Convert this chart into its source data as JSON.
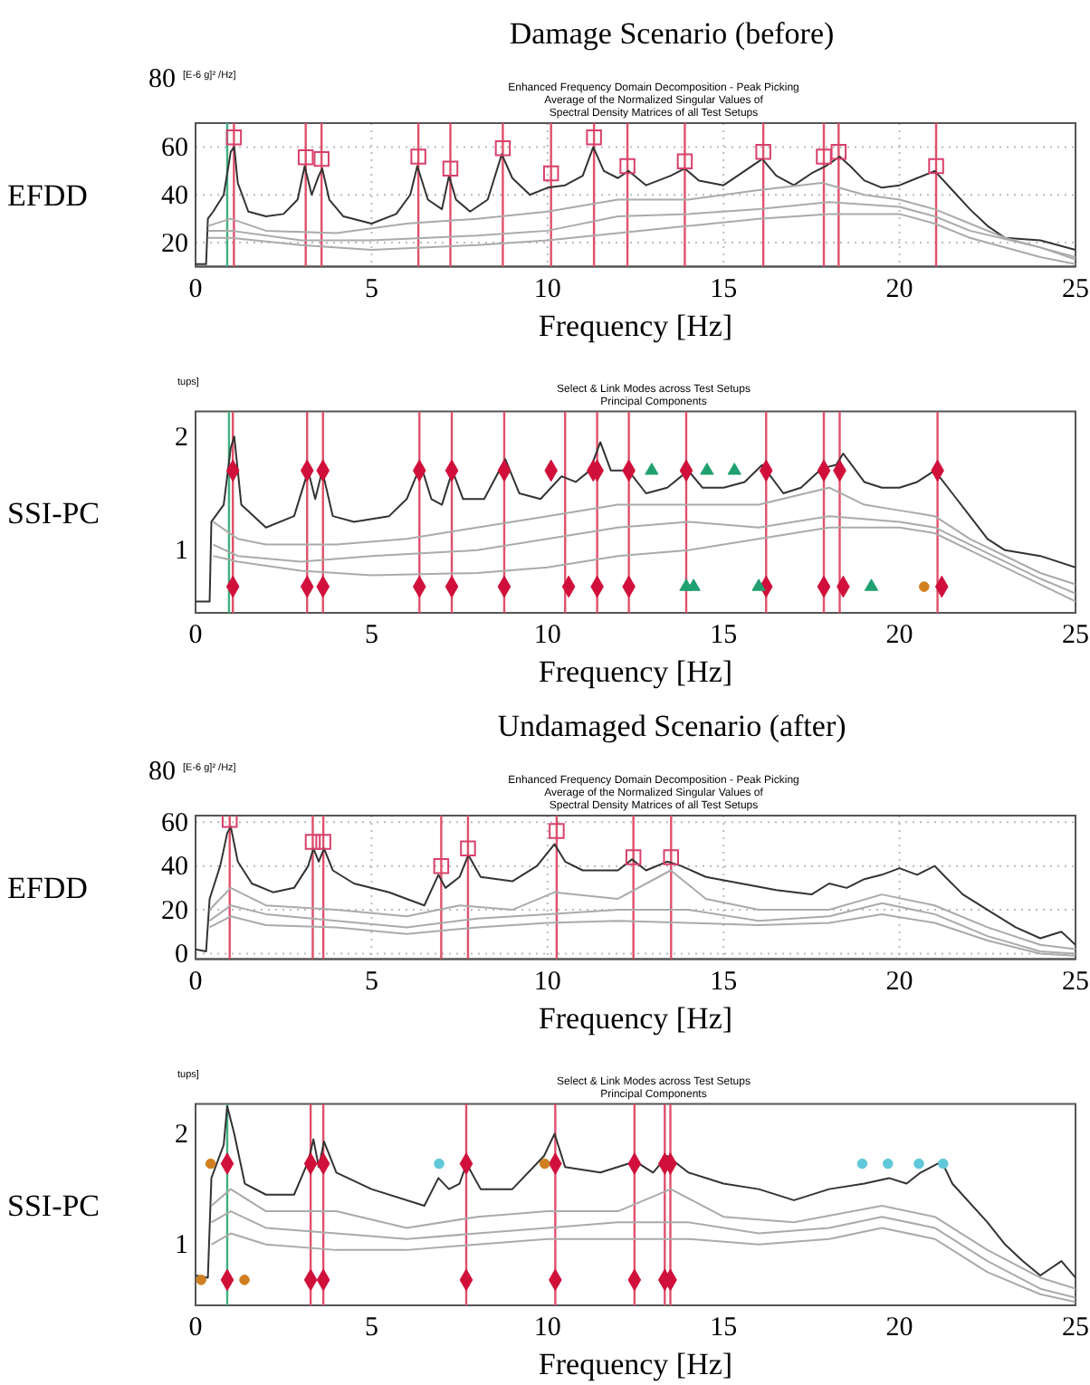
{
  "chart_data": [
    {
      "type": "line",
      "title": "Damage Scenario (before)",
      "subtitle": "Enhanced Frequency Domain Decomposition - Peak Picking\nAverage of the Normalized Singular Values of\nSpectral Density Matrices of all Test Setups",
      "ylabel": "EFDD",
      "xlabel": "Frequency [Hz]",
      "annotations": [
        "80",
        "[E-6 g]² /Hz]"
      ],
      "xlim": [
        0,
        25
      ],
      "xticks": [
        0,
        5,
        10,
        15,
        20,
        25
      ],
      "ylim": [
        10,
        70
      ],
      "yticks": [
        20,
        40,
        60
      ],
      "grid": true,
      "series": [
        {
          "color": "#333333",
          "x": [
            0,
            0.3,
            0.35,
            0.5,
            0.8,
            1.0,
            1.1,
            1.2,
            1.5,
            2,
            2.5,
            2.9,
            3.1,
            3.3,
            3.5,
            3.6,
            3.8,
            4.2,
            5,
            5.7,
            6.1,
            6.3,
            6.6,
            7,
            7.2,
            7.4,
            7.8,
            8.3,
            8.7,
            9.0,
            9.5,
            10,
            10.5,
            11,
            11.3,
            11.6,
            12,
            12.3,
            12.8,
            13.5,
            13.9,
            14.3,
            15,
            15.6,
            16.1,
            16.5,
            17,
            17.5,
            17.9,
            18.3,
            18.6,
            19,
            19.5,
            20,
            20.5,
            21,
            21.5,
            22,
            22.5,
            23,
            24,
            25
          ],
          "values": [
            11,
            11,
            30,
            33,
            40,
            58,
            60,
            45,
            33,
            31,
            32,
            38,
            52,
            40,
            48,
            51,
            38,
            31,
            28,
            32,
            40,
            52,
            38,
            34,
            48,
            38,
            33,
            38,
            57,
            47,
            40,
            43,
            44,
            48,
            60,
            50,
            47,
            50,
            44,
            48,
            51,
            46,
            44,
            50,
            55,
            48,
            44,
            49,
            52,
            56,
            52,
            46,
            43,
            44,
            47,
            50,
            42,
            34,
            27,
            22,
            21,
            17
          ]
        },
        {
          "color": "#aaaaaa",
          "x": [
            0.35,
            1,
            2,
            4,
            6,
            8,
            10,
            12,
            14,
            16,
            17.8,
            19,
            20,
            21,
            22,
            23,
            24,
            25
          ],
          "values": [
            27,
            30,
            25,
            24,
            28,
            30,
            33,
            38,
            38,
            42,
            45,
            40,
            38,
            34,
            28,
            22,
            18,
            14
          ]
        },
        {
          "color": "#aaaaaa",
          "x": [
            0.35,
            1,
            3,
            5,
            8,
            10,
            12,
            14,
            16,
            18,
            20,
            21,
            22,
            24,
            25
          ],
          "values": [
            25,
            25,
            21,
            21,
            23,
            25,
            31,
            32,
            34,
            37,
            35,
            31,
            25,
            18,
            13
          ]
        },
        {
          "color": "#aaaaaa",
          "x": [
            0.35,
            1,
            3,
            5,
            8,
            10,
            12,
            14,
            16,
            18,
            20,
            21,
            22,
            24,
            25
          ],
          "values": [
            22,
            22,
            19,
            17,
            19,
            21,
            24,
            27,
            30,
            32,
            32,
            28,
            22,
            14,
            11
          ]
        },
        {
          "type": "scatter",
          "marker": "square",
          "color": "#d8406a",
          "x": [
            1.09,
            3.13,
            3.58,
            6.33,
            7.24,
            8.73,
            10.1,
            11.32,
            12.27,
            13.9,
            16.13,
            17.85,
            18.27,
            21.04
          ],
          "values": [
            64,
            55.7,
            55,
            56,
            51,
            59.5,
            49,
            64,
            52,
            54,
            58,
            56,
            58,
            52
          ]
        }
      ],
      "ref_lines": [
        {
          "axis": "x",
          "value": 0.9,
          "color": "#40b080"
        },
        {
          "axis": "x",
          "value": 1.09
        },
        {
          "axis": "x",
          "value": 3.13
        },
        {
          "axis": "x",
          "value": 3.58
        },
        {
          "axis": "x",
          "value": 6.33
        },
        {
          "axis": "x",
          "value": 7.24
        },
        {
          "axis": "x",
          "value": 8.73
        },
        {
          "axis": "x",
          "value": 10.1
        },
        {
          "axis": "x",
          "value": 11.32
        },
        {
          "axis": "x",
          "value": 12.27
        },
        {
          "axis": "x",
          "value": 13.9
        },
        {
          "axis": "x",
          "value": 16.13
        },
        {
          "axis": "x",
          "value": 17.85
        },
        {
          "axis": "x",
          "value": 18.27
        },
        {
          "axis": "x",
          "value": 21.04
        }
      ]
    },
    {
      "type": "line",
      "subtitle": "Select & Link Modes across Test Setups\nPrincipal Components",
      "ylabel": "SSI-PC",
      "xlabel": "Frequency [Hz]",
      "annotations": [
        "tups]"
      ],
      "xlim": [
        0,
        25
      ],
      "xticks": [
        0,
        5,
        10,
        15,
        20,
        25
      ],
      "ylim": [
        0.45,
        2.22
      ],
      "yticks": [
        1,
        2
      ],
      "series": [
        {
          "color": "#333333",
          "x": [
            0,
            0.4,
            0.45,
            0.8,
            1.0,
            1.1,
            1.3,
            2,
            2.8,
            3.2,
            3.4,
            3.6,
            3.9,
            4.5,
            5.5,
            6.0,
            6.4,
            6.7,
            7.0,
            7.3,
            7.6,
            8.2,
            8.8,
            9.2,
            9.8,
            10.4,
            10.8,
            11.2,
            11.5,
            11.8,
            12.3,
            12.8,
            13.4,
            14,
            14.4,
            15,
            15.6,
            16.1,
            16.7,
            17.2,
            17.8,
            18.2,
            18.4,
            19,
            19.5,
            20,
            20.5,
            21,
            21.5,
            22,
            22.5,
            23,
            24,
            25
          ],
          "values": [
            0.55,
            0.55,
            1.25,
            1.4,
            1.9,
            2.0,
            1.4,
            1.2,
            1.3,
            1.7,
            1.45,
            1.7,
            1.3,
            1.25,
            1.3,
            1.45,
            1.75,
            1.45,
            1.4,
            1.7,
            1.45,
            1.45,
            1.8,
            1.5,
            1.45,
            1.65,
            1.6,
            1.7,
            1.95,
            1.7,
            1.7,
            1.5,
            1.55,
            1.7,
            1.55,
            1.55,
            1.6,
            1.75,
            1.5,
            1.55,
            1.72,
            1.75,
            1.85,
            1.6,
            1.55,
            1.55,
            1.6,
            1.7,
            1.5,
            1.3,
            1.1,
            1.0,
            0.95,
            0.85
          ]
        },
        {
          "color": "#aaaaaa",
          "x": [
            0.5,
            1.2,
            2,
            4,
            6,
            8,
            10,
            12,
            14,
            16,
            18,
            19,
            20,
            21,
            22,
            24,
            25
          ],
          "values": [
            1.25,
            1.1,
            1.05,
            1.05,
            1.1,
            1.2,
            1.3,
            1.4,
            1.4,
            1.4,
            1.55,
            1.4,
            1.35,
            1.3,
            1.1,
            0.8,
            0.7
          ]
        },
        {
          "color": "#aaaaaa",
          "x": [
            0.5,
            1.2,
            3,
            5,
            8,
            10,
            12,
            14,
            16,
            18,
            20,
            21,
            22,
            24,
            25
          ],
          "values": [
            1.05,
            0.95,
            0.9,
            0.95,
            1.0,
            1.1,
            1.2,
            1.25,
            1.2,
            1.3,
            1.25,
            1.2,
            1.05,
            0.75,
            0.62
          ]
        },
        {
          "color": "#aaaaaa",
          "x": [
            0.5,
            1.2,
            3,
            5,
            8,
            10,
            12,
            14,
            16,
            18,
            20,
            21,
            22,
            24,
            25
          ],
          "values": [
            0.95,
            0.9,
            0.82,
            0.78,
            0.8,
            0.85,
            0.95,
            1.0,
            1.1,
            1.2,
            1.2,
            1.15,
            1.0,
            0.7,
            0.55
          ]
        },
        {
          "type": "scatter",
          "marker": "diamond",
          "color": "#d0103a",
          "x": [
            1.06,
            3.17,
            3.62,
            6.36,
            7.28,
            8.77,
            10.1,
            11.3,
            11.41,
            12.31,
            13.94,
            16.21,
            17.85,
            18.3,
            21.08,
            1.06,
            3.17,
            3.62,
            6.36,
            7.28,
            8.77,
            10.6,
            11.41,
            12.31,
            16.21,
            17.85,
            18.4,
            21.2
          ],
          "values": [
            1.7,
            1.7,
            1.7,
            1.7,
            1.7,
            1.7,
            1.7,
            1.7,
            1.7,
            1.7,
            1.7,
            1.7,
            1.7,
            1.7,
            1.7,
            0.68,
            0.68,
            0.68,
            0.68,
            0.68,
            0.68,
            0.68,
            0.68,
            0.68,
            0.68,
            0.68,
            0.68,
            0.68
          ]
        },
        {
          "type": "scatter",
          "marker": "triangle",
          "color": "#20a070",
          "x": [
            12.96,
            14.53,
            15.31,
            13.94,
            14.15,
            16.0,
            19.2
          ],
          "values": [
            1.7,
            1.7,
            1.7,
            0.68,
            0.68,
            0.68,
            0.68
          ]
        },
        {
          "type": "scatter",
          "marker": "circle",
          "color": "#d08020",
          "x": [
            20.7
          ],
          "values": [
            0.68
          ]
        }
      ],
      "ref_lines": [
        {
          "axis": "x",
          "value": 0.95,
          "color": "#40b080"
        },
        {
          "axis": "x",
          "value": 1.06
        },
        {
          "axis": "x",
          "value": 3.17
        },
        {
          "axis": "x",
          "value": 3.62
        },
        {
          "axis": "x",
          "value": 6.36
        },
        {
          "axis": "x",
          "value": 7.28
        },
        {
          "axis": "x",
          "value": 8.77
        },
        {
          "axis": "x",
          "value": 10.5
        },
        {
          "axis": "x",
          "value": 11.41
        },
        {
          "axis": "x",
          "value": 12.31
        },
        {
          "axis": "x",
          "value": 13.94
        },
        {
          "axis": "x",
          "value": 16.21
        },
        {
          "axis": "x",
          "value": 17.85
        },
        {
          "axis": "x",
          "value": 18.3
        },
        {
          "axis": "x",
          "value": 21.08
        }
      ]
    },
    {
      "type": "line",
      "title": "Undamaged Scenario (after)",
      "subtitle": "Enhanced Frequency Domain Decomposition - Peak Picking\nAverage of the Normalized Singular Values of\nSpectral Density Matrices of all Test Setups",
      "ylabel": "EFDD",
      "xlabel": "Frequency [Hz]",
      "annotations": [
        "80",
        "[E-6 g]² /Hz]"
      ],
      "xlim": [
        0,
        25
      ],
      "xticks": [
        0,
        5,
        10,
        15,
        20,
        25
      ],
      "ylim": [
        -2.5,
        63
      ],
      "yticks": [
        0,
        20,
        40,
        60
      ],
      "grid": true,
      "series": [
        {
          "color": "#333333",
          "x": [
            0,
            0.3,
            0.4,
            0.7,
            0.9,
            1.0,
            1.2,
            1.6,
            2.2,
            2.8,
            3.2,
            3.35,
            3.5,
            3.65,
            3.9,
            4.5,
            5.5,
            6.5,
            6.9,
            7.1,
            7.5,
            7.75,
            8.1,
            9,
            9.7,
            10.2,
            10.5,
            11,
            12,
            12.4,
            12.8,
            13.4,
            13.8,
            14.5,
            15.5,
            16.5,
            17.5,
            18,
            18.5,
            19,
            19.5,
            20,
            20.5,
            21,
            21.3,
            21.8,
            22.5,
            23.3,
            24,
            24.6,
            25
          ],
          "values": [
            2,
            1,
            25,
            40,
            55,
            58,
            42,
            32,
            28,
            30,
            40,
            48,
            42,
            48,
            38,
            32,
            28,
            22,
            36,
            30,
            35,
            45,
            35,
            33,
            40,
            50,
            42,
            38,
            38,
            43,
            38,
            42,
            40,
            35,
            32,
            29,
            27,
            32,
            30,
            34,
            36,
            39,
            36,
            40,
            35,
            27,
            20,
            12,
            7,
            10,
            4
          ]
        },
        {
          "color": "#aaaaaa",
          "x": [
            0.4,
            1,
            2,
            4,
            6,
            7.5,
            9,
            10.2,
            12,
            13.5,
            14.5,
            16,
            18,
            19.5,
            21,
            22.5,
            24,
            25
          ],
          "values": [
            20,
            30,
            22,
            20,
            17,
            22,
            20,
            28,
            25,
            38,
            25,
            20,
            20,
            27,
            22,
            12,
            4,
            2
          ]
        },
        {
          "color": "#aaaaaa",
          "x": [
            0.4,
            1,
            2,
            4,
            6,
            8,
            10,
            12,
            14,
            16,
            18,
            19.5,
            21,
            22.5,
            24,
            25
          ],
          "values": [
            15,
            22,
            18,
            15,
            12,
            16,
            18,
            20,
            20,
            15,
            17,
            23,
            18,
            8,
            1,
            0
          ]
        },
        {
          "color": "#aaaaaa",
          "x": [
            0.4,
            1,
            2,
            4,
            6,
            8,
            10,
            12,
            14,
            16,
            18,
            19.5,
            21,
            22.5,
            24,
            25
          ],
          "values": [
            12,
            17,
            13,
            12,
            9,
            12,
            14,
            15,
            14,
            13,
            14,
            18,
            14,
            6,
            0,
            -1
          ]
        },
        {
          "type": "scatter",
          "marker": "square",
          "color": "#d8406a",
          "x": [
            0.97,
            3.33,
            3.63,
            6.98,
            7.74,
            10.26,
            12.44,
            13.51
          ],
          "values": [
            61,
            51,
            51,
            40,
            48,
            56,
            44,
            44
          ]
        }
      ],
      "ref_lines": [
        {
          "axis": "x",
          "value": 0.97
        },
        {
          "axis": "x",
          "value": 3.33
        },
        {
          "axis": "x",
          "value": 3.63
        },
        {
          "axis": "x",
          "value": 6.98
        },
        {
          "axis": "x",
          "value": 7.74
        },
        {
          "axis": "x",
          "value": 10.26
        },
        {
          "axis": "x",
          "value": 12.44
        },
        {
          "axis": "x",
          "value": 13.51
        }
      ]
    },
    {
      "type": "line",
      "subtitle": "Select & Link Modes across Test Setups\nPrincipal Components",
      "ylabel": "SSI-PC",
      "xlabel": "Frequency [Hz]",
      "annotations": [
        "tups]"
      ],
      "xlim": [
        0,
        25
      ],
      "xticks": [
        0,
        5,
        10,
        15,
        20,
        25
      ],
      "ylim": [
        0.45,
        2.27
      ],
      "yticks": [
        1,
        2
      ],
      "series": [
        {
          "color": "#333333",
          "x": [
            0,
            0.35,
            0.45,
            0.8,
            0.9,
            1.1,
            1.4,
            2,
            2.8,
            3.2,
            3.35,
            3.5,
            3.65,
            4.0,
            5,
            6.5,
            6.9,
            7.2,
            7.5,
            7.7,
            8.1,
            9,
            9.9,
            10.2,
            10.5,
            11.5,
            12.5,
            13,
            13.4,
            14,
            15,
            16,
            17,
            18,
            19,
            19.7,
            20.2,
            20.6,
            21.2,
            21.5,
            22.5,
            23,
            23.5,
            24,
            24.6,
            25
          ],
          "values": [
            0.72,
            0.7,
            1.6,
            1.9,
            2.25,
            2.0,
            1.55,
            1.45,
            1.45,
            1.75,
            1.95,
            1.7,
            1.93,
            1.65,
            1.5,
            1.35,
            1.6,
            1.5,
            1.55,
            1.73,
            1.5,
            1.5,
            1.8,
            2.0,
            1.7,
            1.65,
            1.75,
            1.65,
            1.8,
            1.65,
            1.55,
            1.5,
            1.4,
            1.5,
            1.55,
            1.6,
            1.55,
            1.65,
            1.75,
            1.55,
            1.2,
            1.0,
            0.85,
            0.72,
            0.85,
            0.7
          ]
        },
        {
          "color": "#aaaaaa",
          "x": [
            0.45,
            1,
            2,
            4,
            6,
            8,
            10,
            12,
            13.5,
            15,
            17,
            19.5,
            21,
            22.5,
            24,
            25
          ],
          "values": [
            1.35,
            1.5,
            1.3,
            1.3,
            1.15,
            1.25,
            1.3,
            1.3,
            1.5,
            1.25,
            1.2,
            1.35,
            1.25,
            0.95,
            0.7,
            0.6
          ]
        },
        {
          "color": "#aaaaaa",
          "x": [
            0.45,
            1,
            2,
            4,
            6,
            8,
            10,
            12,
            14,
            16,
            18,
            19.5,
            21,
            22.5,
            24,
            25
          ],
          "values": [
            1.2,
            1.3,
            1.15,
            1.1,
            1.05,
            1.1,
            1.15,
            1.2,
            1.2,
            1.1,
            1.15,
            1.25,
            1.15,
            0.85,
            0.6,
            0.52
          ]
        },
        {
          "color": "#aaaaaa",
          "x": [
            0.45,
            1,
            2,
            4,
            6,
            8,
            10,
            12,
            14,
            16,
            18,
            19.5,
            21,
            22.5,
            24,
            25
          ],
          "values": [
            1.0,
            1.1,
            1.0,
            0.95,
            0.95,
            1.0,
            1.05,
            1.05,
            1.05,
            1.0,
            1.05,
            1.15,
            1.05,
            0.75,
            0.55,
            0.48
          ]
        },
        {
          "type": "scatter",
          "marker": "diamond",
          "color": "#d0103a",
          "x": [
            0.9,
            3.27,
            3.63,
            7.69,
            10.22,
            12.47,
            13.33,
            13.49,
            0.9,
            3.27,
            3.63,
            7.69,
            10.22,
            12.47,
            13.33,
            13.49
          ],
          "values": [
            1.73,
            1.73,
            1.73,
            1.73,
            1.73,
            1.73,
            1.73,
            1.73,
            0.68,
            0.68,
            0.68,
            0.68,
            0.68,
            0.68,
            0.68,
            0.68
          ]
        },
        {
          "type": "scatter",
          "marker": "circle",
          "color": "#60c8d8",
          "x": [
            6.92,
            18.94,
            19.67,
            20.55,
            21.24
          ],
          "values": [
            1.73,
            1.73,
            1.73,
            1.73,
            1.73
          ]
        },
        {
          "type": "scatter",
          "marker": "circle",
          "color": "#d08020",
          "x": [
            0.43,
            9.92,
            0.16,
            1.39
          ],
          "values": [
            1.73,
            1.73,
            0.68,
            0.68
          ]
        }
      ],
      "ref_lines": [
        {
          "axis": "x",
          "value": 0.9,
          "color": "#40b080"
        },
        {
          "axis": "x",
          "value": 3.27
        },
        {
          "axis": "x",
          "value": 3.63
        },
        {
          "axis": "x",
          "value": 7.69
        },
        {
          "axis": "x",
          "value": 10.22
        },
        {
          "axis": "x",
          "value": 12.47
        },
        {
          "axis": "x",
          "value": 13.33
        },
        {
          "axis": "x",
          "value": 13.49
        }
      ]
    }
  ]
}
